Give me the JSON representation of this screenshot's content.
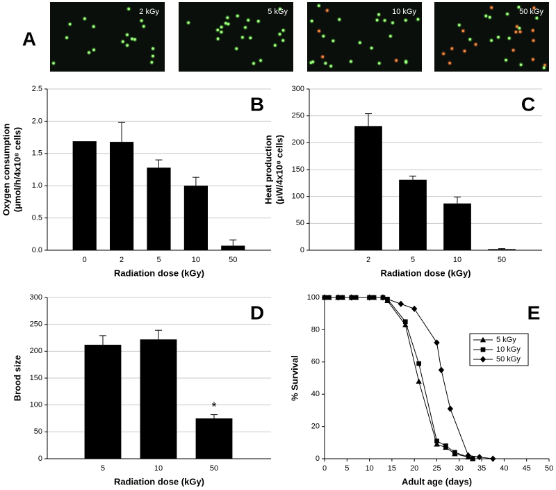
{
  "panel_a": {
    "panel": "A",
    "images": [
      {
        "label": "2 kGy"
      },
      {
        "label": "5 kGy"
      },
      {
        "label": "10 kGy"
      },
      {
        "label": "50 kGy"
      }
    ]
  },
  "chart_data": [
    {
      "type": "bar",
      "panel": "B",
      "ylabel": [
        "Oxygen consumption",
        "(μmol/h/4x10⁸ cells)"
      ],
      "xlabel": "Radiation dose (kGy)",
      "categories": [
        "0",
        "2",
        "5",
        "10",
        "50"
      ],
      "values": [
        1.69,
        1.68,
        1.28,
        1.0,
        0.07
      ],
      "errors": [
        null,
        0.3,
        0.12,
        0.13,
        0.09
      ],
      "color": "#000000",
      "ylim": [
        0,
        2.5
      ],
      "yticks": [
        {
          "value": 0,
          "label": "0.0"
        },
        0.5,
        {
          "value": 1,
          "label": "1.0"
        },
        1.5,
        {
          "value": 2,
          "label": "2.0"
        },
        2.5
      ],
      "grid": true
    },
    {
      "type": "bar",
      "panel": "C",
      "ylabel": [
        "Heat production",
        "(μW/4x10⁸ cells)"
      ],
      "xlabel": "Radiation dose (kGy)",
      "categories": [
        "2",
        "5",
        "10",
        "50"
      ],
      "values": [
        231,
        131,
        87,
        2
      ],
      "errors": [
        23,
        7,
        12,
        1
      ],
      "color": "#000000",
      "ylim": [
        0,
        300
      ],
      "yticks": [
        0,
        50,
        100,
        150,
        200,
        250,
        300
      ],
      "grid": true
    },
    {
      "type": "bar",
      "panel": "D",
      "ylabel": [
        "Brood size"
      ],
      "xlabel": "Radiation dose (kGy)",
      "categories": [
        "5",
        "10",
        "50"
      ],
      "values": [
        212,
        222,
        75
      ],
      "errors": [
        17,
        17,
        7
      ],
      "annotations": [
        null,
        null,
        "*"
      ],
      "color": "#000000",
      "ylim": [
        0,
        300
      ],
      "yticks": [
        0,
        50,
        100,
        150,
        200,
        250,
        300
      ],
      "grid": true
    },
    {
      "type": "line",
      "panel": "E",
      "ylabel": [
        "% Survival"
      ],
      "xlabel": "Adult age (days)",
      "xlim": [
        0,
        50
      ],
      "xticks": [
        0,
        5,
        10,
        15,
        20,
        25,
        30,
        35,
        40,
        45,
        50
      ],
      "ylim": [
        0,
        100
      ],
      "yticks": [
        0,
        20,
        40,
        60,
        80,
        100
      ],
      "grid": false,
      "legend": "upper right",
      "series": [
        {
          "name": "5 kGy",
          "marker": "triangle",
          "color": "#000000",
          "x": [
            0,
            1,
            3,
            4,
            6,
            7,
            10,
            11,
            13,
            14,
            18,
            21,
            25,
            27,
            29,
            32,
            33
          ],
          "values": [
            100,
            100,
            100,
            100,
            100,
            100,
            100,
            100,
            100,
            98,
            83,
            48,
            9,
            7,
            3,
            1,
            0
          ]
        },
        {
          "name": "10 kGy",
          "marker": "square",
          "color": "#000000",
          "x": [
            0,
            1,
            3,
            4,
            6,
            7,
            10,
            11,
            13,
            14,
            18,
            21,
            25,
            27,
            29,
            33
          ],
          "values": [
            100,
            100,
            100,
            100,
            100,
            100,
            100,
            100,
            100,
            99,
            85,
            59,
            11,
            8,
            4,
            0
          ]
        },
        {
          "name": "50 kGy",
          "marker": "diamond",
          "color": "#000000",
          "x": [
            0,
            3,
            6,
            10,
            13,
            17,
            20,
            25,
            26,
            28,
            32,
            34.5,
            37.5
          ],
          "values": [
            100,
            100,
            100,
            100,
            100,
            96,
            93,
            72,
            55,
            31,
            2,
            1,
            0
          ]
        }
      ]
    }
  ]
}
